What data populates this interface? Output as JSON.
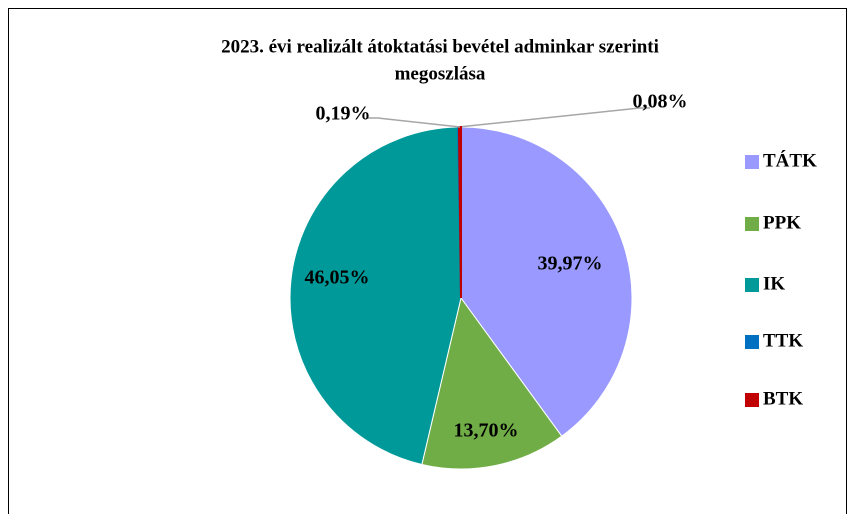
{
  "chart_data": {
    "type": "pie",
    "title": "2023. évi realizált átoktatási bevétel adminkar szerinti",
    "subtitle": "megoszlása",
    "categories": [
      "TÁTK",
      "PPK",
      "IK",
      "TTK",
      "BTK"
    ],
    "values": [
      39.97,
      13.7,
      46.05,
      0.08,
      0.19
    ],
    "value_labels": [
      "39,97%",
      "13,70%",
      "46,05%",
      "0,08%",
      "0,19%"
    ],
    "colors": [
      "#9999ff",
      "#70ad47",
      "#009999",
      "#0070c0",
      "#c00000"
    ],
    "legend": "right"
  }
}
